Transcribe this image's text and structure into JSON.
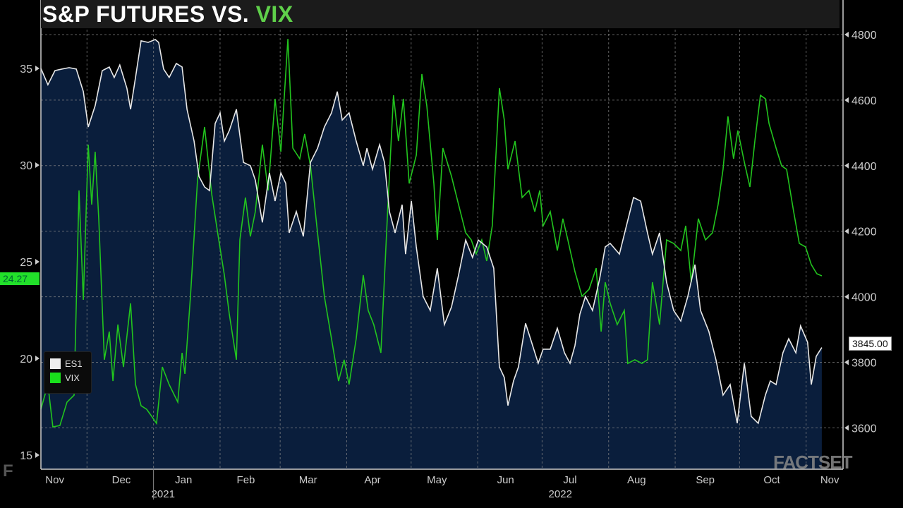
{
  "title": {
    "main": "S&P FUTURES VS. ",
    "accent": "VIX"
  },
  "watermark": "FACTSET",
  "logo_text": "F",
  "colors": {
    "es1": "#e8e8e8",
    "vix": "#22c41e",
    "fill": "#0a1e3c",
    "title_accent": "#5fd04a"
  },
  "chart_data": {
    "type": "line",
    "title": "S&P FUTURES VS. VIX",
    "x_unit": "days since 2021-11-01",
    "x_range": [
      0,
      380
    ],
    "x_ticks": [
      {
        "label": "Nov",
        "day": 15
      },
      {
        "label": "Dec",
        "day": 46
      },
      {
        "label": "Jan",
        "day": 75
      },
      {
        "label": "Feb",
        "day": 104
      },
      {
        "label": "Mar",
        "day": 133
      },
      {
        "label": "Apr",
        "day": 163
      },
      {
        "label": "May",
        "day": 193
      },
      {
        "label": "Jun",
        "day": 225
      },
      {
        "label": "Jul",
        "day": 255
      },
      {
        "label": "Aug",
        "day": 286
      },
      {
        "label": "Sep",
        "day": 318
      },
      {
        "label": "Oct",
        "day": 349
      },
      {
        "label": "Nov",
        "day": 376
      }
    ],
    "month_starts": [
      30,
      61,
      92,
      120,
      151,
      181,
      212,
      242,
      273,
      304,
      334,
      365
    ],
    "years": [
      {
        "label": "2021",
        "day": 30
      },
      {
        "label": "2022",
        "day": 215
      }
    ],
    "year_divider_day": 61,
    "left_axis": {
      "series": "VIX",
      "range": [
        13,
        37.5
      ],
      "ticks": [
        15,
        20,
        25,
        30,
        35
      ],
      "labels": [
        "15",
        "20",
        "25",
        "30",
        "35"
      ]
    },
    "right_axis": {
      "series": "ES1",
      "range": [
        3480,
        4905
      ],
      "ticks": [
        3600,
        3800,
        4000,
        4200,
        4400,
        4600,
        4800
      ],
      "labels": [
        "3600",
        "3800",
        "4000",
        "4200",
        "4400",
        "4600",
        "4800"
      ]
    },
    "legend": {
      "position": "bottom-left",
      "entries": [
        "ES1",
        "VIX"
      ]
    },
    "last_values": {
      "VIX": "24.27",
      "ES1": "3845.00"
    },
    "series": [
      {
        "name": "ES1",
        "axis": "right",
        "style": "line-filled",
        "points": [
          [
            8.5,
            4697
          ],
          [
            11.8,
            4647
          ],
          [
            15.1,
            4690
          ],
          [
            18.4,
            4695
          ],
          [
            21.7,
            4699
          ],
          [
            25.0,
            4695
          ],
          [
            28.3,
            4626
          ],
          [
            30.6,
            4518
          ],
          [
            33.8,
            4583
          ],
          [
            37.1,
            4690
          ],
          [
            40.4,
            4701
          ],
          [
            42.7,
            4669
          ],
          [
            45.3,
            4707
          ],
          [
            48.6,
            4636
          ],
          [
            50.3,
            4572
          ],
          [
            52.6,
            4669
          ],
          [
            55.2,
            4781
          ],
          [
            58.5,
            4776
          ],
          [
            61.8,
            4785
          ],
          [
            63.4,
            4776
          ],
          [
            65.7,
            4695
          ],
          [
            68.3,
            4669
          ],
          [
            71.6,
            4712
          ],
          [
            74.3,
            4701
          ],
          [
            76.6,
            4572
          ],
          [
            79.9,
            4475
          ],
          [
            82.2,
            4367
          ],
          [
            84.8,
            4335
          ],
          [
            87.1,
            4324
          ],
          [
            89.7,
            4529
          ],
          [
            92.0,
            4561
          ],
          [
            94.0,
            4475
          ],
          [
            96.3,
            4507
          ],
          [
            99.6,
            4572
          ],
          [
            102.9,
            4410
          ],
          [
            106.1,
            4400
          ],
          [
            108.4,
            4356
          ],
          [
            111.7,
            4227
          ],
          [
            115.0,
            4378
          ],
          [
            117.6,
            4292
          ],
          [
            120.3,
            4378
          ],
          [
            122.6,
            4346
          ],
          [
            124.2,
            4195
          ],
          [
            127.5,
            4260
          ],
          [
            130.8,
            4184
          ],
          [
            134.1,
            4410
          ],
          [
            137.4,
            4453
          ],
          [
            140.6,
            4518
          ],
          [
            143.9,
            4561
          ],
          [
            146.6,
            4626
          ],
          [
            148.9,
            4539
          ],
          [
            152.1,
            4561
          ],
          [
            155.4,
            4475
          ],
          [
            158.7,
            4400
          ],
          [
            160.4,
            4453
          ],
          [
            163.0,
            4389
          ],
          [
            166.3,
            4464
          ],
          [
            168.6,
            4410
          ],
          [
            170.9,
            4260
          ],
          [
            173.5,
            4195
          ],
          [
            176.8,
            4281
          ],
          [
            178.4,
            4130
          ],
          [
            181.1,
            4292
          ],
          [
            183.4,
            4152
          ],
          [
            186.6,
            4001
          ],
          [
            189.9,
            3958
          ],
          [
            193.2,
            4087
          ],
          [
            196.5,
            3915
          ],
          [
            199.8,
            3969
          ],
          [
            203.1,
            4066
          ],
          [
            206.4,
            4173
          ],
          [
            209.6,
            4120
          ],
          [
            212.3,
            4173
          ],
          [
            216.2,
            4152
          ],
          [
            219.5,
            4087
          ],
          [
            222.1,
            3786
          ],
          [
            224.4,
            3754
          ],
          [
            226.1,
            3668
          ],
          [
            228.7,
            3743
          ],
          [
            231.0,
            3786
          ],
          [
            234.3,
            3919
          ],
          [
            237.6,
            3851
          ],
          [
            240.2,
            3797
          ],
          [
            242.5,
            3840
          ],
          [
            245.8,
            3840
          ],
          [
            249.1,
            3904
          ],
          [
            252.4,
            3829
          ],
          [
            255.0,
            3797
          ],
          [
            257.3,
            3851
          ],
          [
            259.6,
            3947
          ],
          [
            262.2,
            4001
          ],
          [
            265.5,
            3958
          ],
          [
            268.8,
            4055
          ],
          [
            271.4,
            4152
          ],
          [
            273.7,
            4163
          ],
          [
            278.0,
            4130
          ],
          [
            281.3,
            4217
          ],
          [
            284.6,
            4303
          ],
          [
            287.9,
            4292
          ],
          [
            291.1,
            4195
          ],
          [
            293.4,
            4130
          ],
          [
            296.7,
            4195
          ],
          [
            300.0,
            4044
          ],
          [
            303.3,
            3958
          ],
          [
            306.6,
            3926
          ],
          [
            309.9,
            4001
          ],
          [
            313.2,
            4098
          ],
          [
            315.8,
            3958
          ],
          [
            319.7,
            3894
          ],
          [
            323.0,
            3807
          ],
          [
            326.3,
            3700
          ],
          [
            329.6,
            3732
          ],
          [
            332.9,
            3614
          ],
          [
            336.2,
            3797
          ],
          [
            339.4,
            3635
          ],
          [
            342.7,
            3614
          ],
          [
            346.0,
            3700
          ],
          [
            348.3,
            3743
          ],
          [
            351.0,
            3732
          ],
          [
            354.2,
            3829
          ],
          [
            356.9,
            3872
          ],
          [
            360.2,
            3829
          ],
          [
            362.4,
            3911
          ],
          [
            365.7,
            3861
          ],
          [
            367.4,
            3732
          ],
          [
            369.7,
            3818
          ],
          [
            372.3,
            3845
          ]
        ]
      },
      {
        "name": "VIX",
        "axis": "left",
        "style": "line",
        "points": [
          [
            8.5,
            17.37
          ],
          [
            11.8,
            18.65
          ],
          [
            14.1,
            16.46
          ],
          [
            17.4,
            16.53
          ],
          [
            20.7,
            17.74
          ],
          [
            24.0,
            18.1
          ],
          [
            26.3,
            28.69
          ],
          [
            28.3,
            23.03
          ],
          [
            30.6,
            31.06
          ],
          [
            32.2,
            27.96
          ],
          [
            33.8,
            30.69
          ],
          [
            35.5,
            27.23
          ],
          [
            38.1,
            19.93
          ],
          [
            40.4,
            21.39
          ],
          [
            42.1,
            18.83
          ],
          [
            44.4,
            21.75
          ],
          [
            47.0,
            19.56
          ],
          [
            50.3,
            22.85
          ],
          [
            52.6,
            18.65
          ],
          [
            55.2,
            17.55
          ],
          [
            57.8,
            17.37
          ],
          [
            60.1,
            17.01
          ],
          [
            62.4,
            16.64
          ],
          [
            65.1,
            19.56
          ],
          [
            68.3,
            18.65
          ],
          [
            72.3,
            17.74
          ],
          [
            74.3,
            20.29
          ],
          [
            75.6,
            19.2
          ],
          [
            78.2,
            23.21
          ],
          [
            81.5,
            29.23
          ],
          [
            84.8,
            31.97
          ],
          [
            88.1,
            28.5
          ],
          [
            91.4,
            26.13
          ],
          [
            94.0,
            24.31
          ],
          [
            96.3,
            22.3
          ],
          [
            99.6,
            19.93
          ],
          [
            101.2,
            26.13
          ],
          [
            103.8,
            28.32
          ],
          [
            106.1,
            26.31
          ],
          [
            108.4,
            27.59
          ],
          [
            111.7,
            31.06
          ],
          [
            114.4,
            28.69
          ],
          [
            117.6,
            33.43
          ],
          [
            120.3,
            30.69
          ],
          [
            123.6,
            36.53
          ],
          [
            125.9,
            30.88
          ],
          [
            129.1,
            30.33
          ],
          [
            131.4,
            31.61
          ],
          [
            134.1,
            29.96
          ],
          [
            137.4,
            26.5
          ],
          [
            140.6,
            23.21
          ],
          [
            143.9,
            21.02
          ],
          [
            147.2,
            18.83
          ],
          [
            149.8,
            19.93
          ],
          [
            152.1,
            18.65
          ],
          [
            155.4,
            21.02
          ],
          [
            158.7,
            24.31
          ],
          [
            161.0,
            22.48
          ],
          [
            163.6,
            21.75
          ],
          [
            166.9,
            20.29
          ],
          [
            170.2,
            27.96
          ],
          [
            172.8,
            33.61
          ],
          [
            175.1,
            31.24
          ],
          [
            177.4,
            33.43
          ],
          [
            180.1,
            29.05
          ],
          [
            183.4,
            30.51
          ],
          [
            186.0,
            34.71
          ],
          [
            188.3,
            33.07
          ],
          [
            191.6,
            29.05
          ],
          [
            193.2,
            26.13
          ],
          [
            195.8,
            30.88
          ],
          [
            199.8,
            29.42
          ],
          [
            203.1,
            27.96
          ],
          [
            206.4,
            26.5
          ],
          [
            209.0,
            26.13
          ],
          [
            211.3,
            25.4
          ],
          [
            213.9,
            26.13
          ],
          [
            216.2,
            25.04
          ],
          [
            218.8,
            26.86
          ],
          [
            222.1,
            33.98
          ],
          [
            224.4,
            32.34
          ],
          [
            226.1,
            29.78
          ],
          [
            229.4,
            31.24
          ],
          [
            232.7,
            28.32
          ],
          [
            235.9,
            28.69
          ],
          [
            238.6,
            27.59
          ],
          [
            240.9,
            28.69
          ],
          [
            242.5,
            26.86
          ],
          [
            245.8,
            27.59
          ],
          [
            249.1,
            25.58
          ],
          [
            251.7,
            27.23
          ],
          [
            254.0,
            26.13
          ],
          [
            257.3,
            24.49
          ],
          [
            260.6,
            23.21
          ],
          [
            263.9,
            23.58
          ],
          [
            267.2,
            24.67
          ],
          [
            269.5,
            21.39
          ],
          [
            271.4,
            23.94
          ],
          [
            273.7,
            22.85
          ],
          [
            277.0,
            21.75
          ],
          [
            280.3,
            22.48
          ],
          [
            281.9,
            19.74
          ],
          [
            285.2,
            19.93
          ],
          [
            288.5,
            19.74
          ],
          [
            291.1,
            19.93
          ],
          [
            293.4,
            23.94
          ],
          [
            296.7,
            21.75
          ],
          [
            300.0,
            26.13
          ],
          [
            303.3,
            25.95
          ],
          [
            306.6,
            25.58
          ],
          [
            308.9,
            26.86
          ],
          [
            311.5,
            23.94
          ],
          [
            314.8,
            27.23
          ],
          [
            318.1,
            26.13
          ],
          [
            321.4,
            26.5
          ],
          [
            324.0,
            27.96
          ],
          [
            326.3,
            29.78
          ],
          [
            328.6,
            32.52
          ],
          [
            331.2,
            30.33
          ],
          [
            333.2,
            31.79
          ],
          [
            336.2,
            30.15
          ],
          [
            338.8,
            28.87
          ],
          [
            341.1,
            31.24
          ],
          [
            343.7,
            33.61
          ],
          [
            346.0,
            33.43
          ],
          [
            347.7,
            32.15
          ],
          [
            351.0,
            30.88
          ],
          [
            353.6,
            29.96
          ],
          [
            355.9,
            29.78
          ],
          [
            359.2,
            27.59
          ],
          [
            361.8,
            25.95
          ],
          [
            364.7,
            25.77
          ],
          [
            367.4,
            24.85
          ],
          [
            370.0,
            24.38
          ],
          [
            372.3,
            24.27
          ]
        ]
      }
    ]
  }
}
